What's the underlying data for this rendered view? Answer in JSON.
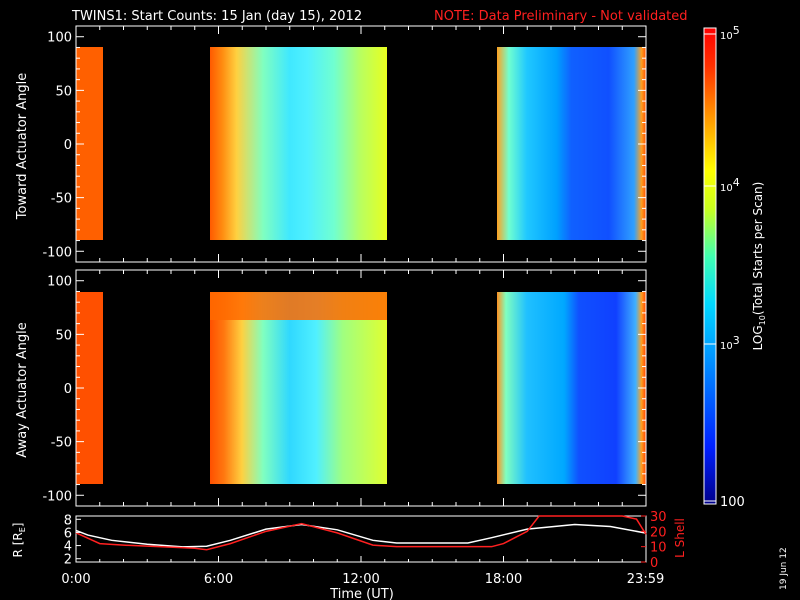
{
  "chart_data": [
    {
      "type": "heatmap",
      "title": "TWINS1: Start Counts: 15 Jan (day  15), 2012",
      "note": "NOTE: Data Preliminary - Not validated",
      "ylabel": "Toward Actuator Angle",
      "ylim": [
        -110,
        110
      ],
      "yticks": [
        "100",
        "50",
        "0",
        "-50",
        "-100"
      ],
      "xlim": [
        0,
        24
      ],
      "xticks": [
        0,
        6,
        12,
        18,
        23.98
      ],
      "data_blocks": [
        {
          "x_start": 0.0,
          "x_end": 0.15,
          "level": "high"
        },
        {
          "x_start": 5.5,
          "x_end": 13.0,
          "level": "mixed"
        },
        {
          "x_start": 17.5,
          "x_end": 24.0,
          "level": "mixed-low"
        }
      ],
      "angle_range": [
        -90,
        90
      ]
    },
    {
      "type": "heatmap",
      "ylabel": "Away Actuator Angle",
      "ylim": [
        -110,
        110
      ],
      "yticks": [
        "100",
        "50",
        "0",
        "-50",
        "-100"
      ],
      "xlim": [
        0,
        24
      ],
      "data_blocks": [
        {
          "x_start": 0.0,
          "x_end": 0.15,
          "level": "high"
        },
        {
          "x_start": 5.5,
          "x_end": 13.0,
          "level": "mixed"
        },
        {
          "x_start": 17.5,
          "x_end": 24.0,
          "level": "mixed-low"
        }
      ],
      "angle_range": [
        -90,
        90
      ]
    },
    {
      "type": "line",
      "ylabel_left": "R [R",
      "ylabel_left_sub": "E",
      "ylabel_left_tail": "]",
      "ylabel_right": "L Shell",
      "yticks_left": [
        "8",
        "6",
        "4",
        "2"
      ],
      "yticks_right": [
        "30",
        "20",
        "10",
        "0"
      ],
      "ylim_left": [
        1.5,
        8.5
      ],
      "ylim_right": [
        0,
        30
      ],
      "xlabel": "Time (UT)",
      "xticks": [
        "0:00",
        "6:00",
        "12:00",
        "18:00",
        "23:59"
      ],
      "series": [
        {
          "color": "#ffffff",
          "x": [
            0,
            0.5,
            1.5,
            3,
            4.5,
            5.5,
            6.5,
            8,
            9.5,
            11,
            12.5,
            13.5,
            15,
            16.5,
            17.5,
            19,
            21,
            22.5,
            24
          ],
          "y": [
            6.3,
            5.6,
            4.8,
            4.2,
            3.8,
            3.9,
            4.8,
            6.5,
            7.2,
            6.4,
            4.8,
            4.4,
            4.4,
            4.4,
            5.2,
            6.5,
            7.2,
            6.9,
            5.9
          ]
        },
        {
          "color": "#ff2020",
          "x": [
            0,
            1,
            2,
            3.5,
            5,
            5.5,
            6.5,
            8,
            9.5,
            11,
            12.5,
            13.5,
            15,
            17.5,
            18,
            19,
            19.5,
            21,
            22.5,
            23,
            23.6,
            24
          ],
          "y": [
            19,
            12,
            11,
            10,
            9,
            8,
            12,
            20,
            25,
            19,
            11,
            10,
            10,
            10,
            12,
            20,
            30,
            30,
            30,
            30,
            28,
            18
          ],
          "axis": "right"
        }
      ]
    }
  ],
  "colorbar": {
    "label_main": "LOG",
    "label_sub": "10",
    "label_tail": "(Total Starts per Scan)",
    "ticks": [
      {
        "base": "10",
        "exp": "5"
      },
      {
        "base": "10",
        "exp": "4"
      },
      {
        "base": "10",
        "exp": "3"
      },
      {
        "base": "100",
        "exp": ""
      }
    ]
  },
  "footer_date": "19 Jun 12",
  "colors": {
    "background": "#000000",
    "axis": "#ffffff",
    "note": "#ff2020",
    "lshell": "#ff2020"
  }
}
